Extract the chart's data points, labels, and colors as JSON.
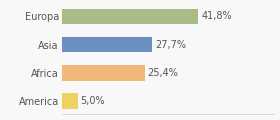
{
  "categories": [
    "America",
    "Africa",
    "Asia",
    "Europa"
  ],
  "values": [
    5.0,
    25.4,
    27.7,
    41.8
  ],
  "labels": [
    "5,0%",
    "25,4%",
    "27,7%",
    "41,8%"
  ],
  "colors": [
    "#f0d060",
    "#f0b878",
    "#6b90c0",
    "#a8bc88"
  ],
  "xlim": [
    0,
    65
  ],
  "background_color": "#f8f8f8",
  "bar_height": 0.55,
  "label_fontsize": 7.0,
  "category_fontsize": 7.0
}
